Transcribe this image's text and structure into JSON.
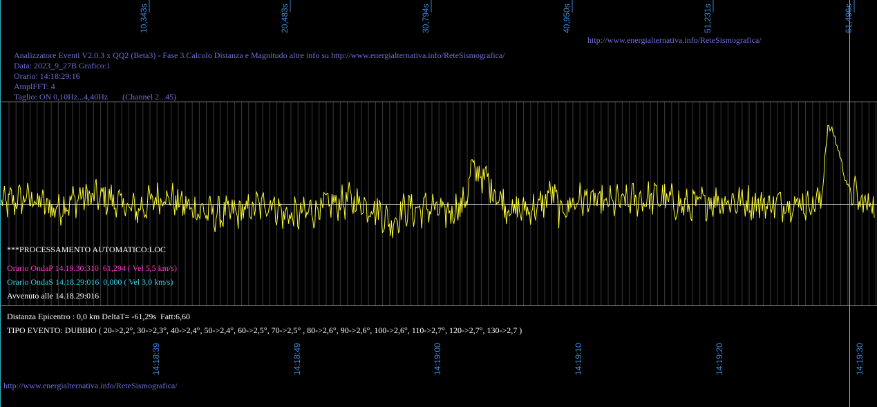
{
  "chart_data": {
    "type": "line",
    "title": "",
    "top_ticks": [
      "10,343s",
      "20,483s",
      "30,794s",
      "40,950s",
      "51,231s",
      "61,496s"
    ],
    "bottom_ticks": [
      "14:18:39",
      "14:18:49",
      "14:19:00",
      "14:19:10",
      "14:19:20",
      "14:19:30"
    ],
    "series": [
      {
        "color": "#ffff33",
        "points": [
          [
            0.0,
            0.0
          ],
          [
            2.0,
            0.5
          ],
          [
            4.0,
            -0.4
          ],
          [
            6.0,
            0.6
          ],
          [
            8.0,
            0.4
          ],
          [
            10.0,
            -0.5
          ],
          [
            12.0,
            0.7
          ],
          [
            14.0,
            -0.3
          ],
          [
            16.0,
            -0.8
          ],
          [
            18.0,
            -0.6
          ],
          [
            20.0,
            0.2
          ],
          [
            21.0,
            -0.8
          ],
          [
            22.0,
            -0.9
          ],
          [
            24.0,
            -0.2
          ],
          [
            26.0,
            0.3
          ],
          [
            28.0,
            -0.4
          ],
          [
            29.0,
            -1.5
          ],
          [
            30.0,
            -0.3
          ],
          [
            31.0,
            -0.5
          ],
          [
            32.0,
            -0.2
          ],
          [
            33.0,
            -0.8
          ],
          [
            34.5,
            0.1
          ],
          [
            35.0,
            2.7
          ],
          [
            36.0,
            2.0
          ],
          [
            37.0,
            0.5
          ],
          [
            38.0,
            -0.5
          ],
          [
            40.0,
            -0.3
          ],
          [
            41.0,
            1.0
          ],
          [
            41.5,
            -0.6
          ],
          [
            43.0,
            0.4
          ],
          [
            45.0,
            0.0
          ],
          [
            47.0,
            0.3
          ],
          [
            49.0,
            0.5
          ],
          [
            51.0,
            -0.2
          ],
          [
            53.0,
            0.3
          ],
          [
            55.0,
            0.2
          ],
          [
            57.0,
            0.0
          ],
          [
            59.0,
            0.1
          ],
          [
            60.0,
            0.0
          ],
          [
            61.0,
            0.3
          ],
          [
            61.5,
            6.0
          ],
          [
            62.0,
            5.2
          ],
          [
            63.0,
            1.2
          ],
          [
            63.5,
            0.8
          ],
          [
            64.0,
            0.0
          ],
          [
            65.0,
            0.2
          ]
        ]
      }
    ],
    "baseline_color": "#ffffff",
    "marker_color": "#ff80c0"
  },
  "header": {
    "line1": "Analizzatore Eventi V2.0.3 x QQ2 (Beta3) - Fase 3.Calcolo Distanza e Magnitudo altre info su http://www.energialternativa.info/ReteSismografica/",
    "line2": "Data: 2023_9_27B Grafico:1",
    "line3": "Orario: 14:18:29:16",
    "line4": "AmplFFT: 4",
    "line5": "Taglio: ON 0,10Hz...4,40Hz       (Channel 2...45)"
  },
  "url_top": "http://www.energialternativa.info/ReteSismografica/",
  "url_bottom": "http://www.energialternativa.info/ReteSismografica/",
  "info": {
    "processing": "***PROCESSAMENTO AUTOMATICO:LOC",
    "onda_p": "Orario OndaP 14.19.30:310  61,294 ( Vel 5,5 km/s)",
    "onda_s": "Orario OndaS 14.18.29:016  0,000 ( Vel 3,0 km/s)",
    "avvenuto": "Avvenuto alle 14.18.29:016",
    "distanza": "Distanza Epicentro : 0,0 km DeltaT= -61,29s  Fatt:6,60",
    "tipo": "TIPO EVENTO: DUBBIO ( 20->2,2°, 30->2,3°, 40->2,4°, 50->2,4°, 60->2,5°, 70->2,5° , 80->2,6°, 90->2,6°, 100->2,6°, 110->2,7°, 120->2,7°, 130->2,7 )"
  }
}
